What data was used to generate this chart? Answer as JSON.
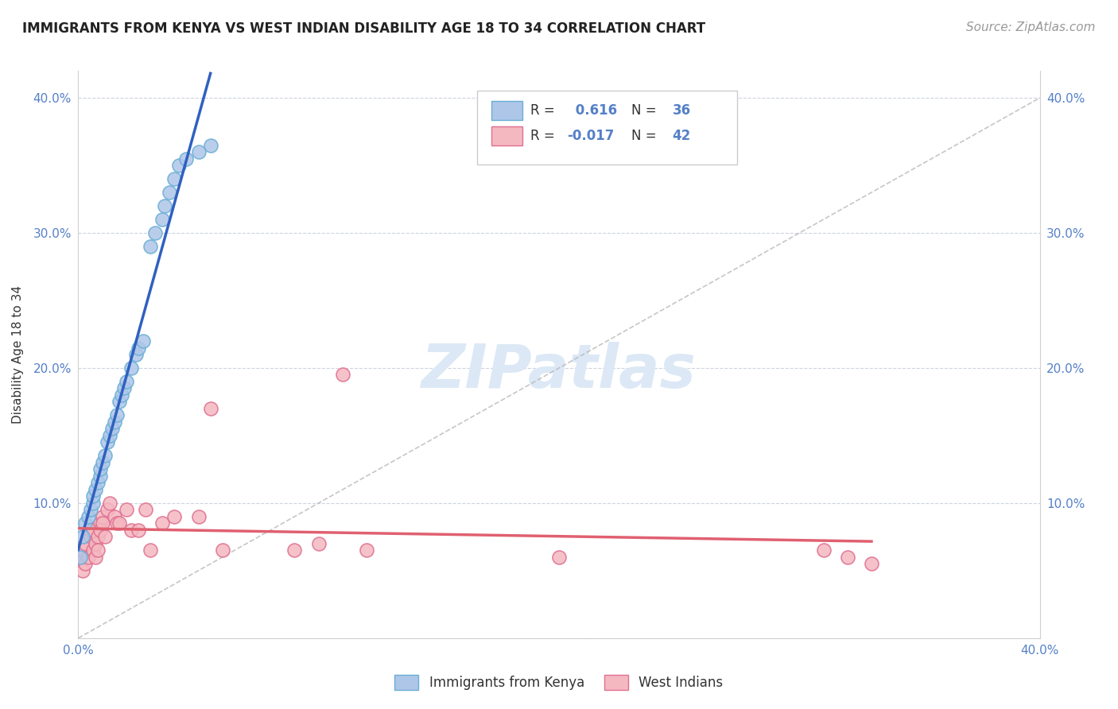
{
  "title": "IMMIGRANTS FROM KENYA VS WEST INDIAN DISABILITY AGE 18 TO 34 CORRELATION CHART",
  "source": "Source: ZipAtlas.com",
  "ylabel": "Disability Age 18 to 34",
  "kenya_color": "#aec6e8",
  "kenya_edge": "#6aaed6",
  "westindian_color": "#f4b8c1",
  "westindian_edge": "#e07090",
  "trend_kenya_color": "#3060c0",
  "trend_westindian_color": "#e06070",
  "dashed_line_color": "#b8b8b8",
  "watermark_color": "#dce8f5",
  "xlim": [
    0.0,
    0.4
  ],
  "ylim": [
    0.0,
    0.42
  ],
  "ytick_vals": [
    0.0,
    0.1,
    0.2,
    0.3,
    0.4
  ],
  "ytick_labels_left": [
    "",
    "10.0%",
    "20.0%",
    "30.0%",
    "40.0%"
  ],
  "ytick_labels_right": [
    "",
    "10.0%",
    "20.0%",
    "30.0%",
    "40.0%"
  ],
  "xtick_vals": [
    0.0,
    0.1,
    0.2,
    0.3,
    0.4
  ],
  "xtick_labels": [
    "0.0%",
    "",
    "",
    "",
    "40.0%"
  ],
  "kenya_x": [
    0.001,
    0.002,
    0.003,
    0.004,
    0.005,
    0.006,
    0.006,
    0.007,
    0.008,
    0.009,
    0.009,
    0.01,
    0.011,
    0.012,
    0.013,
    0.014,
    0.015,
    0.016,
    0.017,
    0.018,
    0.019,
    0.02,
    0.022,
    0.024,
    0.025,
    0.027,
    0.03,
    0.032,
    0.035,
    0.036,
    0.038,
    0.04,
    0.042,
    0.045,
    0.05,
    0.055
  ],
  "kenya_y": [
    0.06,
    0.075,
    0.085,
    0.09,
    0.095,
    0.1,
    0.105,
    0.11,
    0.115,
    0.12,
    0.125,
    0.13,
    0.135,
    0.145,
    0.15,
    0.155,
    0.16,
    0.165,
    0.175,
    0.18,
    0.185,
    0.19,
    0.2,
    0.21,
    0.215,
    0.22,
    0.29,
    0.3,
    0.31,
    0.32,
    0.33,
    0.34,
    0.35,
    0.355,
    0.36,
    0.365
  ],
  "wi_x": [
    0.001,
    0.002,
    0.002,
    0.003,
    0.003,
    0.004,
    0.005,
    0.005,
    0.006,
    0.006,
    0.007,
    0.007,
    0.008,
    0.008,
    0.009,
    0.009,
    0.01,
    0.01,
    0.011,
    0.012,
    0.013,
    0.015,
    0.016,
    0.017,
    0.02,
    0.022,
    0.025,
    0.028,
    0.03,
    0.035,
    0.04,
    0.05,
    0.055,
    0.06,
    0.09,
    0.1,
    0.11,
    0.12,
    0.2,
    0.31,
    0.32,
    0.33
  ],
  "wi_y": [
    0.06,
    0.05,
    0.065,
    0.055,
    0.07,
    0.06,
    0.075,
    0.08,
    0.065,
    0.08,
    0.06,
    0.07,
    0.075,
    0.065,
    0.085,
    0.08,
    0.09,
    0.085,
    0.075,
    0.095,
    0.1,
    0.09,
    0.085,
    0.085,
    0.095,
    0.08,
    0.08,
    0.095,
    0.065,
    0.085,
    0.09,
    0.09,
    0.17,
    0.065,
    0.065,
    0.07,
    0.195,
    0.065,
    0.06,
    0.065,
    0.06,
    0.055
  ],
  "title_fontsize": 12,
  "axis_label_fontsize": 11,
  "tick_fontsize": 11,
  "source_fontsize": 11,
  "watermark_fontsize": 55,
  "legend_fontsize": 12
}
